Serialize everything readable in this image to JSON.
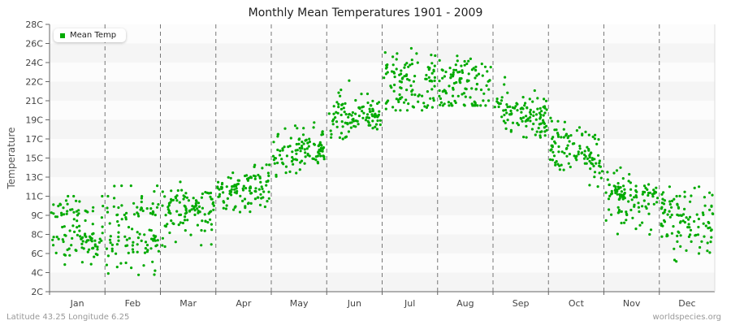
{
  "title": "Monthly Mean Temperatures 1901 - 2009",
  "footer": {
    "left": "Latitude 43.25 Longitude 6.25",
    "right": "worldspecies.org"
  },
  "legend": {
    "label": "Mean Temp",
    "color": "#00aa00"
  },
  "colors": {
    "series": "#00aa00",
    "band_light": "#f5f5f5",
    "band_white": "#fcfcfc",
    "divider": "#777777",
    "axis": "#666666"
  },
  "chart_data": {
    "type": "scatter",
    "title": "Monthly Mean Temperatures 1901 - 2009",
    "xlabel": "",
    "ylabel": "Temperature",
    "categories": [
      "Jan",
      "Feb",
      "Mar",
      "Apr",
      "May",
      "Jun",
      "Jul",
      "Aug",
      "Sep",
      "Oct",
      "Nov",
      "Dec"
    ],
    "y_ticks": [
      "2C",
      "4C",
      "6C",
      "8C",
      "9C",
      "11C",
      "13C",
      "15C",
      "17C",
      "19C",
      "21C",
      "22C",
      "24C",
      "26C",
      "28C"
    ],
    "ylim": [
      2,
      28
    ],
    "grid": "alternating horizontal bands, dashed vertical month dividers",
    "legend_position": "top-left",
    "series": [
      {
        "name": "Mean Temp",
        "description": "Approx. 109 yearly points per month; ranges read from axes",
        "monthly_mean_approx": [
          8.0,
          8.0,
          9.7,
          11.7,
          15.5,
          19.5,
          22.3,
          22.2,
          19.8,
          15.8,
          10.7,
          8.8
        ],
        "monthly_min_approx": [
          4.0,
          2.4,
          6.5,
          8.5,
          13.0,
          17.0,
          20.0,
          20.5,
          16.5,
          11.6,
          8.0,
          4.5
        ],
        "monthly_max_approx": [
          11.0,
          12.1,
          12.5,
          14.3,
          19.0,
          22.5,
          26.5,
          26.0,
          22.7,
          19.2,
          14.0,
          12.0
        ]
      }
    ]
  },
  "axis": {
    "y_title": "Temperature",
    "y_labels": [
      "28C",
      "26C",
      "24C",
      "22C",
      "21C",
      "19C",
      "17C",
      "15C",
      "13C",
      "11C",
      "9C",
      "8C",
      "6C",
      "4C",
      "2C"
    ],
    "x_labels": [
      "Jan",
      "Feb",
      "Mar",
      "Apr",
      "May",
      "Jun",
      "Jul",
      "Aug",
      "Sep",
      "Oct",
      "Nov",
      "Dec"
    ]
  }
}
